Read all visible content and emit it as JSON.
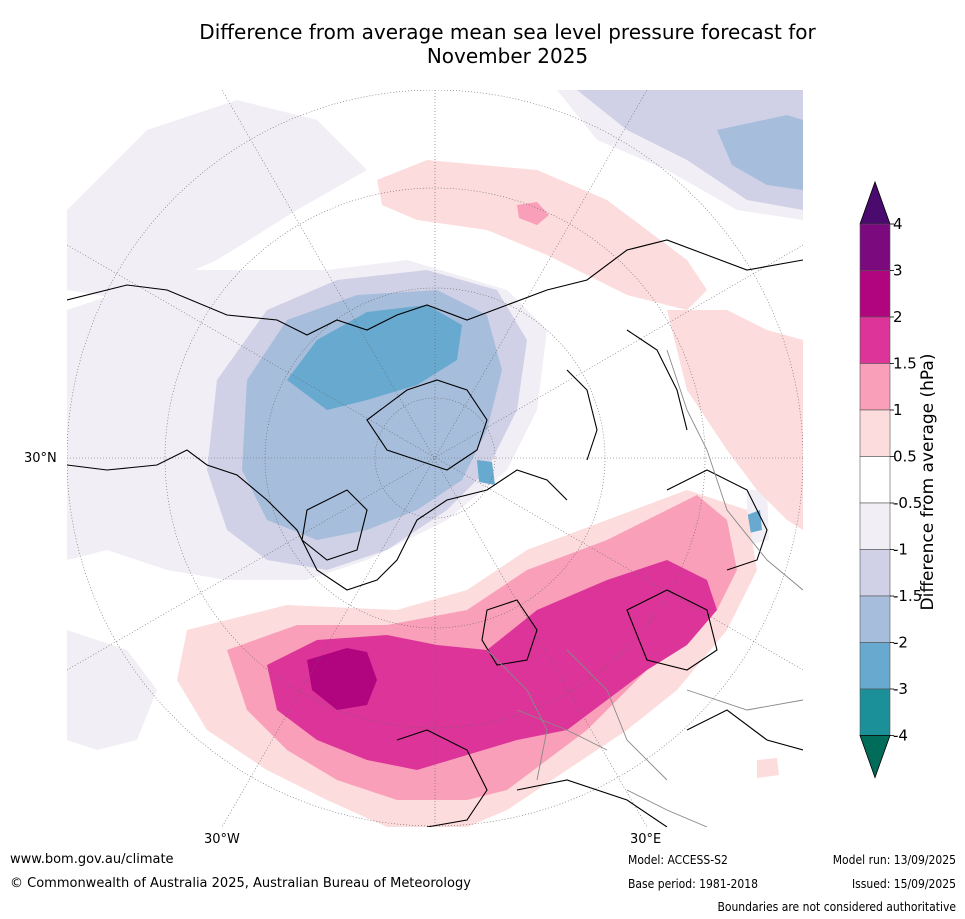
{
  "title_line1": "Difference from average mean sea level pressure forecast for",
  "title_line2": "November 2025",
  "map": {
    "projection": "north-polar-stereographic",
    "lat_label_west": "30°N",
    "lon_label_left": "30°W",
    "lon_label_right": "30°E",
    "graticule": "dotted",
    "land_outline": "coastlines and country borders"
  },
  "colorbar": {
    "label": "Difference from average (hPa)",
    "ticks": [
      "4",
      "3",
      "2",
      "1.5",
      "1",
      "0.5",
      "-0.5",
      "-1",
      "-1.5",
      "-2",
      "-3",
      "-4"
    ],
    "extend": "both",
    "colors": {
      "above_4": "#4b0a6e",
      "3_to_4": "#7b0a7e",
      "2_to_3": "#b1057f",
      "1.5_to_2": "#dd3499",
      "1_to_1.5": "#f99fb9",
      "0.5_to_1": "#fcdcdc",
      "-0.5_to_0.5": "#ffffff",
      "-1_to_-0.5": "#f1eef5",
      "-1.5_to_-1": "#d0d1e6",
      "-2_to_-1.5": "#a6bddb",
      "-3_to_-2": "#67a9cf",
      "-4_to_-3": "#1c9099",
      "below_-4": "#016c59"
    }
  },
  "footer": {
    "website": "www.bom.gov.au/climate",
    "copyright": "© Commonwealth of Australia 2025, Australian Bureau of Meteorology",
    "model": "Model: ACCESS-S2",
    "base_period": "Base period: 1981-2018",
    "model_run": "Model run: 13/09/2025",
    "issued": "Issued: 15/09/2025",
    "disclaimer": "Boundaries are not considered authoritative"
  }
}
